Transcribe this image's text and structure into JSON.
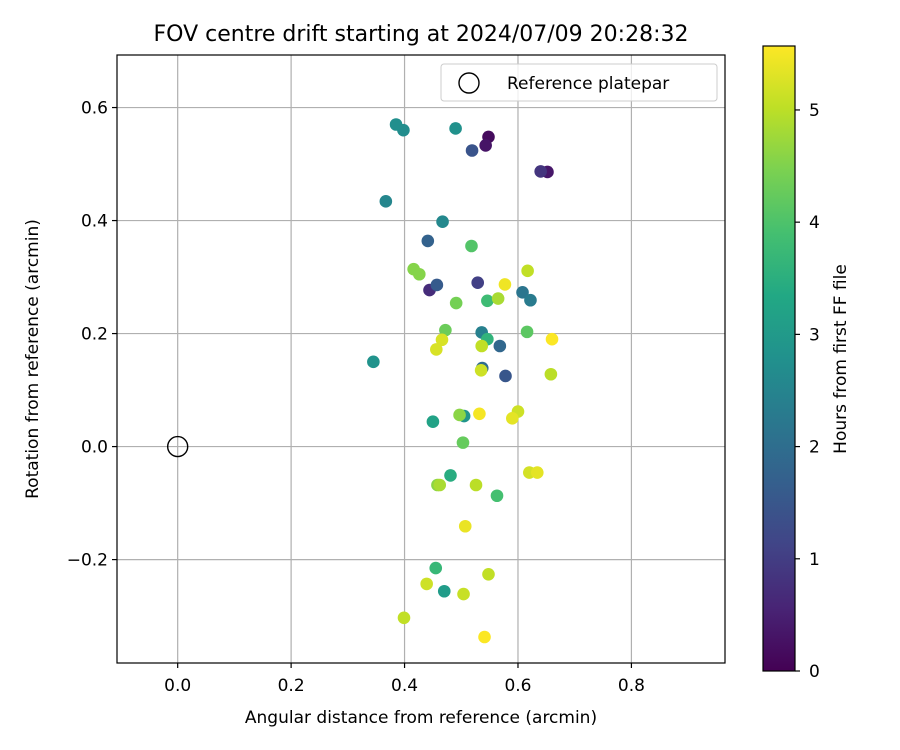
{
  "chart_data": {
    "type": "scatter",
    "title": "FOV centre drift starting at 2024/07/09 20:28:32",
    "xlabel": "Angular distance from reference (arcmin)",
    "ylabel": "Rotation from reference (arcmin)",
    "xlim": [
      -0.107,
      0.965
    ],
    "ylim": [
      -0.383,
      0.693
    ],
    "xticks": [
      0.0,
      0.2,
      0.4,
      0.6,
      0.8
    ],
    "xtick_labels": [
      "0.0",
      "0.2",
      "0.4",
      "0.6",
      "0.8"
    ],
    "yticks": [
      -0.2,
      0.0,
      0.2,
      0.4,
      0.6
    ],
    "ytick_labels": [
      "−0.2",
      "0.0",
      "0.2",
      "0.4",
      "0.6"
    ],
    "grid": true,
    "legend": {
      "position": "top-right",
      "label": "Reference platepar"
    },
    "reference_point": {
      "x": 0.0,
      "y": 0.0
    },
    "colorbar": {
      "label": "Hours from first FF file",
      "range": [
        0,
        5.57
      ],
      "ticks": [
        0,
        1,
        2,
        3,
        4,
        5
      ],
      "tick_labels": [
        "0",
        "1",
        "2",
        "3",
        "4",
        "5"
      ],
      "colormap": "viridis"
    },
    "points": [
      {
        "x": 0.548,
        "y": 0.548,
        "h": 0.15
      },
      {
        "x": 0.543,
        "y": 0.533,
        "h": 0.3
      },
      {
        "x": 0.652,
        "y": 0.486,
        "h": 0.35
      },
      {
        "x": 0.64,
        "y": 0.487,
        "h": 0.85
      },
      {
        "x": 0.444,
        "y": 0.277,
        "h": 0.7
      },
      {
        "x": 0.529,
        "y": 0.29,
        "h": 1.05
      },
      {
        "x": 0.519,
        "y": 0.524,
        "h": 1.45
      },
      {
        "x": 0.578,
        "y": 0.125,
        "h": 1.5
      },
      {
        "x": 0.457,
        "y": 0.286,
        "h": 1.6
      },
      {
        "x": 0.441,
        "y": 0.364,
        "h": 1.75
      },
      {
        "x": 0.568,
        "y": 0.178,
        "h": 1.85
      },
      {
        "x": 0.537,
        "y": 0.139,
        "h": 1.95
      },
      {
        "x": 0.608,
        "y": 0.273,
        "h": 2.15
      },
      {
        "x": 0.622,
        "y": 0.259,
        "h": 2.3
      },
      {
        "x": 0.536,
        "y": 0.202,
        "h": 2.4
      },
      {
        "x": 0.367,
        "y": 0.434,
        "h": 2.55
      },
      {
        "x": 0.467,
        "y": 0.398,
        "h": 2.6
      },
      {
        "x": 0.398,
        "y": 0.56,
        "h": 2.7
      },
      {
        "x": 0.385,
        "y": 0.57,
        "h": 2.75
      },
      {
        "x": 0.49,
        "y": 0.563,
        "h": 2.8
      },
      {
        "x": 0.345,
        "y": 0.15,
        "h": 2.85
      },
      {
        "x": 0.505,
        "y": 0.054,
        "h": 2.9
      },
      {
        "x": 0.47,
        "y": -0.256,
        "h": 3.05
      },
      {
        "x": 0.45,
        "y": 0.044,
        "h": 3.2
      },
      {
        "x": 0.481,
        "y": -0.051,
        "h": 3.45
      },
      {
        "x": 0.546,
        "y": 0.19,
        "h": 3.6
      },
      {
        "x": 0.455,
        "y": -0.215,
        "h": 3.7
      },
      {
        "x": 0.546,
        "y": 0.258,
        "h": 3.8
      },
      {
        "x": 0.563,
        "y": -0.087,
        "h": 3.9
      },
      {
        "x": 0.518,
        "y": 0.355,
        "h": 4.05
      },
      {
        "x": 0.616,
        "y": 0.203,
        "h": 4.15
      },
      {
        "x": 0.503,
        "y": 0.007,
        "h": 4.25
      },
      {
        "x": 0.472,
        "y": 0.206,
        "h": 4.3
      },
      {
        "x": 0.491,
        "y": 0.254,
        "h": 4.4
      },
      {
        "x": 0.416,
        "y": 0.314,
        "h": 4.55
      },
      {
        "x": 0.426,
        "y": 0.305,
        "h": 4.55
      },
      {
        "x": 0.458,
        "y": -0.068,
        "h": 4.6
      },
      {
        "x": 0.497,
        "y": 0.056,
        "h": 4.6
      },
      {
        "x": 0.462,
        "y": -0.068,
        "h": 4.85
      },
      {
        "x": 0.565,
        "y": 0.262,
        "h": 4.85
      },
      {
        "x": 0.658,
        "y": 0.128,
        "h": 5.0
      },
      {
        "x": 0.526,
        "y": -0.068,
        "h": 5.0
      },
      {
        "x": 0.617,
        "y": 0.311,
        "h": 5.05
      },
      {
        "x": 0.536,
        "y": 0.178,
        "h": 5.05
      },
      {
        "x": 0.548,
        "y": -0.226,
        "h": 5.05
      },
      {
        "x": 0.399,
        "y": -0.303,
        "h": 5.05
      },
      {
        "x": 0.504,
        "y": -0.261,
        "h": 5.1
      },
      {
        "x": 0.439,
        "y": -0.243,
        "h": 5.15
      },
      {
        "x": 0.535,
        "y": 0.135,
        "h": 5.15
      },
      {
        "x": 0.6,
        "y": 0.062,
        "h": 5.15
      },
      {
        "x": 0.62,
        "y": -0.046,
        "h": 5.2
      },
      {
        "x": 0.466,
        "y": 0.189,
        "h": 5.25
      },
      {
        "x": 0.456,
        "y": 0.172,
        "h": 5.25
      },
      {
        "x": 0.634,
        "y": -0.046,
        "h": 5.35
      },
      {
        "x": 0.59,
        "y": 0.05,
        "h": 5.35
      },
      {
        "x": 0.507,
        "y": -0.141,
        "h": 5.4
      },
      {
        "x": 0.577,
        "y": 0.287,
        "h": 5.45
      },
      {
        "x": 0.532,
        "y": 0.058,
        "h": 5.5
      },
      {
        "x": 0.541,
        "y": -0.337,
        "h": 5.55
      },
      {
        "x": 0.66,
        "y": 0.19,
        "h": 5.55
      }
    ]
  }
}
